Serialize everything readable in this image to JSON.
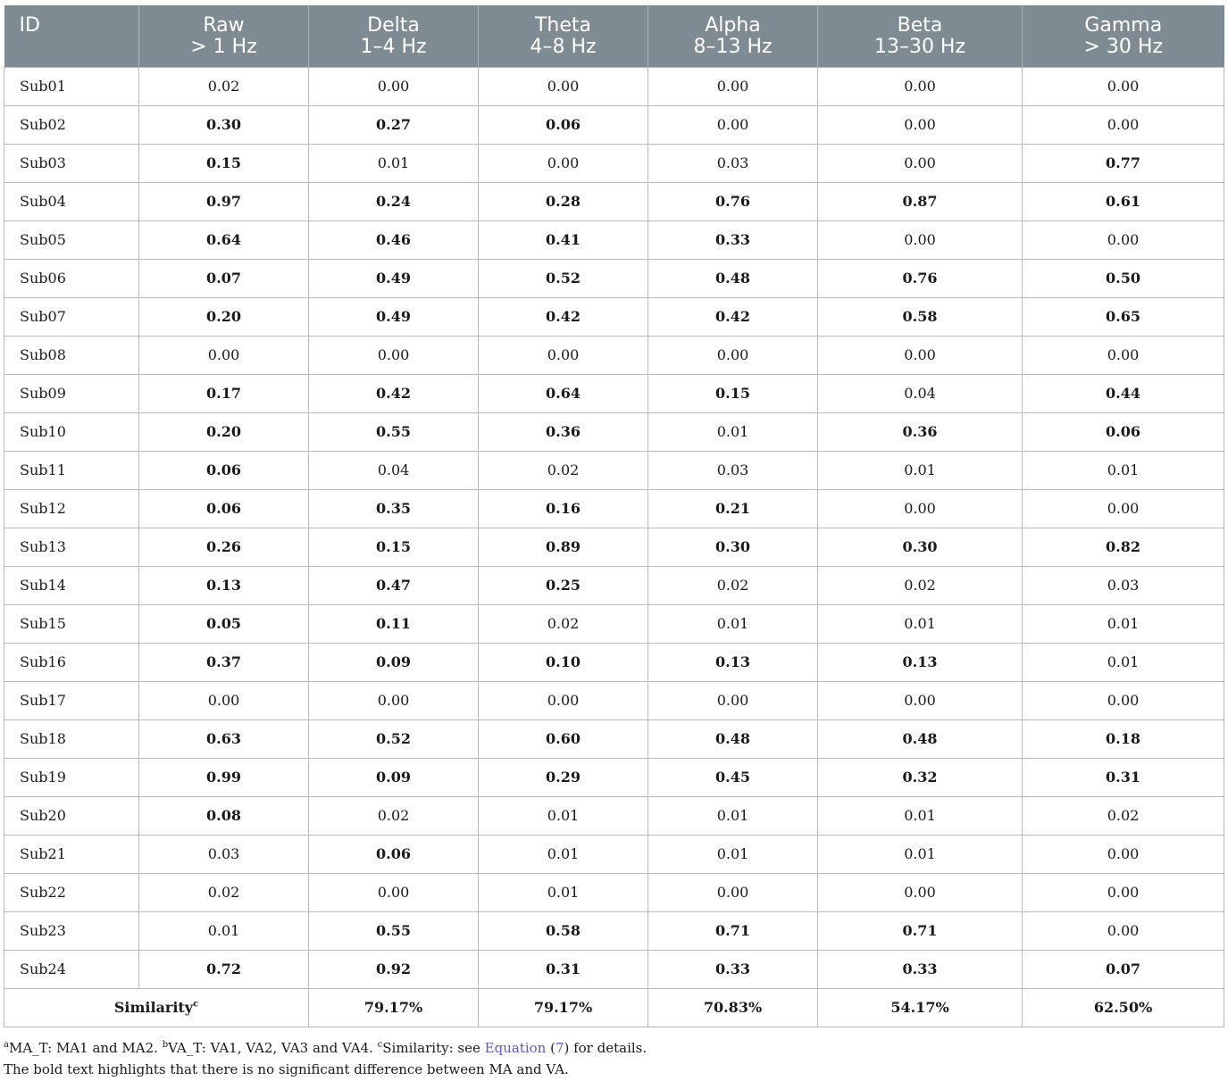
{
  "table": {
    "headers": [
      {
        "line1": "ID",
        "line2": ""
      },
      {
        "line1": "Raw",
        "line2": "> 1 Hz"
      },
      {
        "line1": "Delta",
        "line2": "1–4 Hz"
      },
      {
        "line1": "Theta",
        "line2": "4–8 Hz"
      },
      {
        "line1": "Alpha",
        "line2": "8–13 Hz"
      },
      {
        "line1": "Beta",
        "line2": "13–30 Hz"
      },
      {
        "line1": "Gamma",
        "line2": "> 30 Hz"
      }
    ],
    "rows": [
      {
        "id": "Sub01",
        "values": [
          "0.02",
          "0.00",
          "0.00",
          "0.00",
          "0.00",
          "0.00"
        ],
        "bold": [
          false,
          false,
          false,
          false,
          false,
          false
        ]
      },
      {
        "id": "Sub02",
        "values": [
          "0.30",
          "0.27",
          "0.06",
          "0.00",
          "0.00",
          "0.00"
        ],
        "bold": [
          true,
          true,
          true,
          false,
          false,
          false
        ]
      },
      {
        "id": "Sub03",
        "values": [
          "0.15",
          "0.01",
          "0.00",
          "0.03",
          "0.00",
          "0.77"
        ],
        "bold": [
          true,
          false,
          false,
          false,
          false,
          true
        ]
      },
      {
        "id": "Sub04",
        "values": [
          "0.97",
          "0.24",
          "0.28",
          "0.76",
          "0.87",
          "0.61"
        ],
        "bold": [
          true,
          true,
          true,
          true,
          true,
          true
        ]
      },
      {
        "id": "Sub05",
        "values": [
          "0.64",
          "0.46",
          "0.41",
          "0.33",
          "0.00",
          "0.00"
        ],
        "bold": [
          true,
          true,
          true,
          true,
          false,
          false
        ]
      },
      {
        "id": "Sub06",
        "values": [
          "0.07",
          "0.49",
          "0.52",
          "0.48",
          "0.76",
          "0.50"
        ],
        "bold": [
          true,
          true,
          true,
          true,
          true,
          true
        ]
      },
      {
        "id": "Sub07",
        "values": [
          "0.20",
          "0.49",
          "0.42",
          "0.42",
          "0.58",
          "0.65"
        ],
        "bold": [
          true,
          true,
          true,
          true,
          true,
          true
        ]
      },
      {
        "id": "Sub08",
        "values": [
          "0.00",
          "0.00",
          "0.00",
          "0.00",
          "0.00",
          "0.00"
        ],
        "bold": [
          false,
          false,
          false,
          false,
          false,
          false
        ]
      },
      {
        "id": "Sub09",
        "values": [
          "0.17",
          "0.42",
          "0.64",
          "0.15",
          "0.04",
          "0.44"
        ],
        "bold": [
          true,
          true,
          true,
          true,
          false,
          true
        ]
      },
      {
        "id": "Sub10",
        "values": [
          "0.20",
          "0.55",
          "0.36",
          "0.01",
          "0.36",
          "0.06"
        ],
        "bold": [
          true,
          true,
          true,
          false,
          true,
          true
        ]
      },
      {
        "id": "Sub11",
        "values": [
          "0.06",
          "0.04",
          "0.02",
          "0.03",
          "0.01",
          "0.01"
        ],
        "bold": [
          true,
          false,
          false,
          false,
          false,
          false
        ]
      },
      {
        "id": "Sub12",
        "values": [
          "0.06",
          "0.35",
          "0.16",
          "0.21",
          "0.00",
          "0.00"
        ],
        "bold": [
          true,
          true,
          true,
          true,
          false,
          false
        ]
      },
      {
        "id": "Sub13",
        "values": [
          "0.26",
          "0.15",
          "0.89",
          "0.30",
          "0.30",
          "0.82"
        ],
        "bold": [
          true,
          true,
          true,
          true,
          true,
          true
        ]
      },
      {
        "id": "Sub14",
        "values": [
          "0.13",
          "0.47",
          "0.25",
          "0.02",
          "0.02",
          "0.03"
        ],
        "bold": [
          true,
          true,
          true,
          false,
          false,
          false
        ]
      },
      {
        "id": "Sub15",
        "values": [
          "0.05",
          "0.11",
          "0.02",
          "0.01",
          "0.01",
          "0.01"
        ],
        "bold": [
          true,
          true,
          false,
          false,
          false,
          false
        ]
      },
      {
        "id": "Sub16",
        "values": [
          "0.37",
          "0.09",
          "0.10",
          "0.13",
          "0.13",
          "0.01"
        ],
        "bold": [
          true,
          true,
          true,
          true,
          true,
          false
        ]
      },
      {
        "id": "Sub17",
        "values": [
          "0.00",
          "0.00",
          "0.00",
          "0.00",
          "0.00",
          "0.00"
        ],
        "bold": [
          false,
          false,
          false,
          false,
          false,
          false
        ]
      },
      {
        "id": "Sub18",
        "values": [
          "0.63",
          "0.52",
          "0.60",
          "0.48",
          "0.48",
          "0.18"
        ],
        "bold": [
          true,
          true,
          true,
          true,
          true,
          true
        ]
      },
      {
        "id": "Sub19",
        "values": [
          "0.99",
          "0.09",
          "0.29",
          "0.45",
          "0.32",
          "0.31"
        ],
        "bold": [
          true,
          true,
          true,
          true,
          true,
          true
        ]
      },
      {
        "id": "Sub20",
        "values": [
          "0.08",
          "0.02",
          "0.01",
          "0.01",
          "0.01",
          "0.02"
        ],
        "bold": [
          true,
          false,
          false,
          false,
          false,
          false
        ]
      },
      {
        "id": "Sub21",
        "values": [
          "0.03",
          "0.06",
          "0.01",
          "0.01",
          "0.01",
          "0.00"
        ],
        "bold": [
          false,
          true,
          false,
          false,
          false,
          false
        ]
      },
      {
        "id": "Sub22",
        "values": [
          "0.02",
          "0.00",
          "0.01",
          "0.00",
          "0.00",
          "0.00"
        ],
        "bold": [
          false,
          false,
          false,
          false,
          false,
          false
        ]
      },
      {
        "id": "Sub23",
        "values": [
          "0.01",
          "0.55",
          "0.58",
          "0.71",
          "0.71",
          "0.00"
        ],
        "bold": [
          false,
          true,
          true,
          true,
          true,
          false
        ]
      },
      {
        "id": "Sub24",
        "values": [
          "0.72",
          "0.92",
          "0.31",
          "0.33",
          "0.33",
          "0.07"
        ],
        "bold": [
          true,
          true,
          true,
          true,
          true,
          true
        ]
      }
    ],
    "similarity": {
      "label": "Similarity",
      "label_sup": "c",
      "values": [
        "79.17%",
        "79.17%",
        "70.83%",
        "54.17%",
        "62.50%"
      ]
    }
  },
  "notes": {
    "a_sup": "a",
    "a_text": "MA_T: MA1 and MA2. ",
    "b_sup": "b",
    "b_text": "VA_T: VA1, VA2, VA3 and VA4. ",
    "c_sup": "c",
    "c_text_before": "Similarity: see ",
    "c_link": "Equation",
    "c_paren_open": " (",
    "c_link_num": "7",
    "c_text_after": ") for details.",
    "line2": "The bold text highlights that there is no significant difference between MA and VA."
  },
  "colors": {
    "header_bg": "#7f8b92",
    "header_text": "#ffffff",
    "grid": "#b9b9b9",
    "link": "#6655c8"
  }
}
